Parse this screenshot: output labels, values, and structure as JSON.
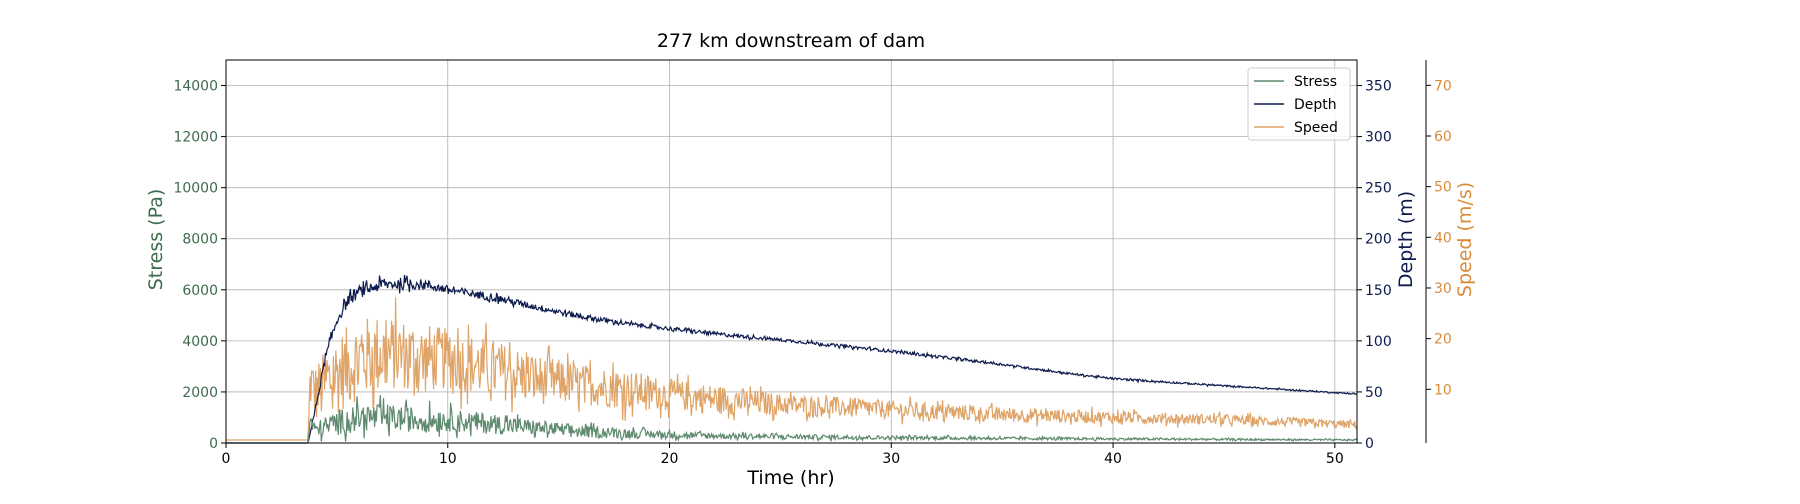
{
  "chart_data": {
    "type": "line",
    "title": "277 km downstream of dam",
    "xlabel": "Time (hr)",
    "xlim": [
      0,
      51
    ],
    "xticks": [
      0,
      10,
      20,
      30,
      40,
      50
    ],
    "grid": true,
    "legend_position": "top-right",
    "axes": {
      "left": {
        "label": "Stress (Pa)",
        "color": "#3d6b4e",
        "ylim": [
          0,
          15000
        ],
        "ticks": [
          0,
          2000,
          4000,
          6000,
          8000,
          10000,
          12000,
          14000
        ]
      },
      "right": {
        "label": "Depth (m)",
        "color": "#0d1b4d",
        "ylim": [
          0,
          375
        ],
        "ticks": [
          0,
          50,
          100,
          150,
          200,
          250,
          300,
          350
        ]
      },
      "far_right": {
        "label": "Speed (m/s)",
        "color": "#d98b3a",
        "ylim": [
          -0.6,
          75
        ],
        "ticks": [
          10,
          20,
          30,
          40,
          50,
          60,
          70
        ]
      }
    },
    "series": [
      {
        "name": "Stress",
        "axis": "left",
        "color": "#5e8a6e",
        "x": [
          0,
          3.7,
          3.8,
          4,
          5,
          6,
          7,
          8,
          9,
          10,
          12,
          14,
          16,
          18,
          20,
          22,
          25,
          30,
          35,
          40,
          45,
          51
        ],
        "y": [
          0,
          0,
          900,
          500,
          800,
          1000,
          1000,
          950,
          900,
          900,
          750,
          600,
          450,
          380,
          320,
          280,
          250,
          210,
          180,
          160,
          140,
          120
        ],
        "noise": [
          0,
          0,
          300,
          300,
          500,
          550,
          550,
          500,
          500,
          450,
          400,
          300,
          250,
          200,
          150,
          120,
          100,
          80,
          60,
          50,
          40,
          30
        ]
      },
      {
        "name": "Depth",
        "axis": "right",
        "color": "#0d1b4d",
        "x": [
          0,
          3.7,
          4,
          4.5,
          5,
          5.5,
          6,
          7,
          8,
          9,
          10,
          12,
          14,
          16,
          18,
          20,
          22,
          25,
          30,
          35,
          38,
          40,
          45,
          51
        ],
        "y": [
          0,
          0,
          30,
          85,
          120,
          140,
          148,
          155,
          156,
          155,
          150,
          143,
          133,
          124,
          117,
          112,
          107,
          101,
          90,
          77,
          68,
          63,
          56,
          48
        ],
        "noise": [
          0,
          0,
          3,
          4,
          5,
          6,
          6,
          6,
          6,
          5,
          4,
          4,
          3,
          3,
          2,
          2,
          2,
          1.5,
          1.5,
          1.2,
          1,
          1,
          0.8,
          0.6
        ]
      },
      {
        "name": "Speed",
        "axis": "far_right",
        "color": "#dfa468",
        "x": [
          0,
          3.7,
          3.8,
          4,
          5,
          6,
          7,
          8,
          9,
          10,
          12,
          14,
          16,
          18,
          20,
          22,
          25,
          30,
          35,
          40,
          45,
          51
        ],
        "y": [
          0,
          0,
          12,
          9,
          13,
          16,
          17,
          17,
          16,
          16,
          14,
          12,
          11,
          10,
          9,
          8,
          7,
          6,
          5,
          4.5,
          4,
          3
        ],
        "noise": [
          0,
          0,
          6,
          6,
          8,
          8,
          8,
          7,
          7,
          6,
          6,
          5,
          4,
          4,
          3,
          3,
          2.2,
          1.8,
          1.5,
          1.2,
          1,
          0.8
        ]
      }
    ]
  }
}
